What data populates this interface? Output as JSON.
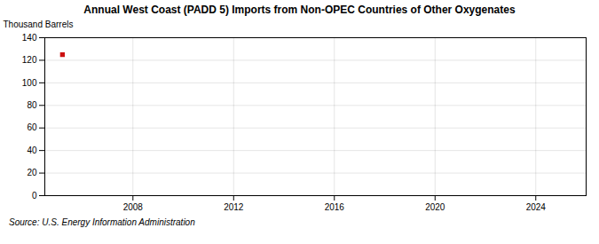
{
  "chart_data": {
    "type": "scatter",
    "title": "Annual West Coast (PADD 5) Imports from Non-OPEC Countries of Other Oxygenates",
    "ylabel": "Thousand Barrels",
    "annotation": "Source: U.S. Energy Information Administration",
    "x": [
      2005.2
    ],
    "values": [
      125
    ],
    "color": "#cc1111",
    "marker": "square",
    "xlim": [
      2004.5,
      2026
    ],
    "xticks": [
      2008,
      2012,
      2016,
      2020,
      2024
    ],
    "ylim": [
      0,
      140
    ],
    "yticks": [
      0,
      20,
      40,
      60,
      80,
      100,
      120,
      140
    ],
    "grid": true
  }
}
